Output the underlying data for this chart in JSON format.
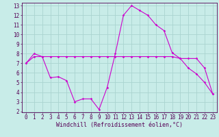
{
  "xlabel": "Windchill (Refroidissement éolien,°C)",
  "bg_color": "#c8ece8",
  "grid_color": "#aad4d0",
  "line_color": "#cc00cc",
  "line1_x": [
    0,
    1,
    2,
    3,
    4,
    5,
    6,
    7,
    8,
    9,
    10,
    11,
    12,
    13,
    14,
    15,
    16,
    17,
    18,
    19,
    20,
    21,
    22,
    23
  ],
  "line1_y": [
    7.0,
    8.0,
    7.7,
    5.5,
    5.6,
    5.2,
    3.0,
    3.3,
    3.3,
    2.2,
    4.5,
    8.0,
    12.0,
    13.0,
    12.5,
    12.0,
    11.0,
    10.4,
    8.1,
    7.5,
    6.5,
    5.9,
    5.0,
    3.8
  ],
  "line2_x": [
    0,
    1,
    2,
    3,
    4,
    5,
    6,
    7,
    8,
    9,
    10,
    11,
    12,
    13,
    14,
    15,
    16,
    17,
    18,
    19,
    20,
    21,
    22,
    23
  ],
  "line2_y": [
    7.0,
    7.7,
    7.7,
    7.7,
    7.7,
    7.7,
    7.7,
    7.7,
    7.7,
    7.7,
    7.7,
    7.7,
    7.7,
    7.7,
    7.7,
    7.7,
    7.7,
    7.7,
    7.7,
    7.5,
    7.5,
    7.5,
    6.5,
    3.8
  ],
  "xlim": [
    0,
    23
  ],
  "ylim": [
    2,
    13
  ],
  "yticks": [
    2,
    3,
    4,
    5,
    6,
    7,
    8,
    9,
    10,
    11,
    12,
    13
  ],
  "xticks": [
    0,
    1,
    2,
    3,
    4,
    5,
    6,
    7,
    8,
    9,
    10,
    11,
    12,
    13,
    14,
    15,
    16,
    17,
    18,
    19,
    20,
    21,
    22,
    23
  ],
  "tick_fontsize": 5.5,
  "xlabel_fontsize": 6.0
}
